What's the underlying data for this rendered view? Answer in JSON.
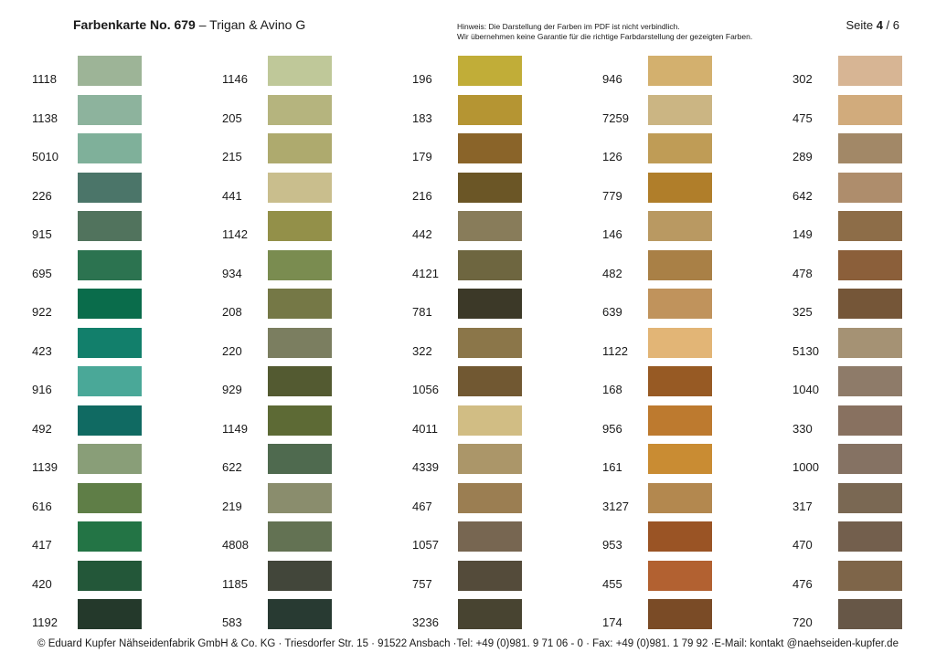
{
  "header": {
    "title_bold": "Farbenkarte No. 679",
    "title_rest": " – Trigan & Avino G",
    "note_line1": "Hinweis: Die Darstellung der Farben im PDF ist nicht verbindlich.",
    "note_line2": "Wir übernehmen keine Garantie für die richtige Farbdarstellung der gezeigten Farben.",
    "page_prefix": "Seite ",
    "page_current": "4",
    "page_suffix": " / 6"
  },
  "columns": [
    [
      {
        "code": "1118",
        "color": "#9db497"
      },
      {
        "code": "1138",
        "color": "#8db39d"
      },
      {
        "code": "5010",
        "color": "#7fb09a"
      },
      {
        "code": "226",
        "color": "#4b7569"
      },
      {
        "code": "915",
        "color": "#51735d"
      },
      {
        "code": "695",
        "color": "#2c7350"
      },
      {
        "code": "922",
        "color": "#0a6c4b"
      },
      {
        "code": "423",
        "color": "#127f6b"
      },
      {
        "code": "916",
        "color": "#4aa898"
      },
      {
        "code": "492",
        "color": "#106a62"
      },
      {
        "code": "1139",
        "color": "#899e78"
      },
      {
        "code": "616",
        "color": "#5f7e47"
      },
      {
        "code": "417",
        "color": "#237445"
      },
      {
        "code": "420",
        "color": "#235739"
      },
      {
        "code": "1192",
        "color": "#24392b"
      }
    ],
    [
      {
        "code": "1146",
        "color": "#bfc899"
      },
      {
        "code": "205",
        "color": "#b5b47e"
      },
      {
        "code": "215",
        "color": "#aeaa6e"
      },
      {
        "code": "441",
        "color": "#c9be8d"
      },
      {
        "code": "1142",
        "color": "#939049"
      },
      {
        "code": "934",
        "color": "#7a8c50"
      },
      {
        "code": "208",
        "color": "#757846"
      },
      {
        "code": "220",
        "color": "#7b7e60"
      },
      {
        "code": "929",
        "color": "#535a31"
      },
      {
        "code": "1149",
        "color": "#5d6a35"
      },
      {
        "code": "622",
        "color": "#4f6a4f"
      },
      {
        "code": "219",
        "color": "#8a8d6d"
      },
      {
        "code": "4808",
        "color": "#637253"
      },
      {
        "code": "1185",
        "color": "#42463a"
      },
      {
        "code": "583",
        "color": "#283a32"
      }
    ],
    [
      {
        "code": "196",
        "color": "#c1ad38"
      },
      {
        "code": "183",
        "color": "#b59533"
      },
      {
        "code": "179",
        "color": "#8a6429"
      },
      {
        "code": "216",
        "color": "#6b5626"
      },
      {
        "code": "442",
        "color": "#887c5a"
      },
      {
        "code": "4121",
        "color": "#6e6640"
      },
      {
        "code": "781",
        "color": "#3c3928"
      },
      {
        "code": "322",
        "color": "#8b7649"
      },
      {
        "code": "1056",
        "color": "#715832"
      },
      {
        "code": "4011",
        "color": "#d1bd84"
      },
      {
        "code": "4339",
        "color": "#ab9669"
      },
      {
        "code": "467",
        "color": "#9b7e52"
      },
      {
        "code": "1057",
        "color": "#776651"
      },
      {
        "code": "757",
        "color": "#544b3a"
      },
      {
        "code": "3236",
        "color": "#484431"
      }
    ],
    [
      {
        "code": "946",
        "color": "#d3b06e"
      },
      {
        "code": "7259",
        "color": "#cbb583"
      },
      {
        "code": "126",
        "color": "#bf9c56"
      },
      {
        "code": "779",
        "color": "#b07e2a"
      },
      {
        "code": "146",
        "color": "#b99962"
      },
      {
        "code": "482",
        "color": "#a98046"
      },
      {
        "code": "639",
        "color": "#c0935c"
      },
      {
        "code": "1122",
        "color": "#e2b576"
      },
      {
        "code": "168",
        "color": "#975a24"
      },
      {
        "code": "956",
        "color": "#bd7a2f"
      },
      {
        "code": "161",
        "color": "#c98c33"
      },
      {
        "code": "3127",
        "color": "#b3884f"
      },
      {
        "code": "953",
        "color": "#9a5425"
      },
      {
        "code": "455",
        "color": "#b26131"
      },
      {
        "code": "174",
        "color": "#7a4b26"
      }
    ],
    [
      {
        "code": "302",
        "color": "#d7b594"
      },
      {
        "code": "475",
        "color": "#d1ab7c"
      },
      {
        "code": "289",
        "color": "#a28867"
      },
      {
        "code": "642",
        "color": "#ae8d6c"
      },
      {
        "code": "149",
        "color": "#8d6d48"
      },
      {
        "code": "478",
        "color": "#8b5f3a"
      },
      {
        "code": "325",
        "color": "#755638"
      },
      {
        "code": "5130",
        "color": "#a59274"
      },
      {
        "code": "1040",
        "color": "#8e7b69"
      },
      {
        "code": "330",
        "color": "#887160"
      },
      {
        "code": "1000",
        "color": "#857263"
      },
      {
        "code": "317",
        "color": "#7a6853"
      },
      {
        "code": "470",
        "color": "#735f4d"
      },
      {
        "code": "476",
        "color": "#7e6549"
      },
      {
        "code": "720",
        "color": "#675747"
      }
    ]
  ],
  "footer": {
    "text": "© Eduard Kupfer Nähseidenfabrik GmbH & Co. KG · Triesdorfer Str. 15 · 91522 Ansbach ·Tel: +49 (0)981. 9 71 06 - 0 · Fax: +49 (0)981. 1 79 92 ·E-Mail: kontakt @naehseiden-kupfer.de"
  }
}
